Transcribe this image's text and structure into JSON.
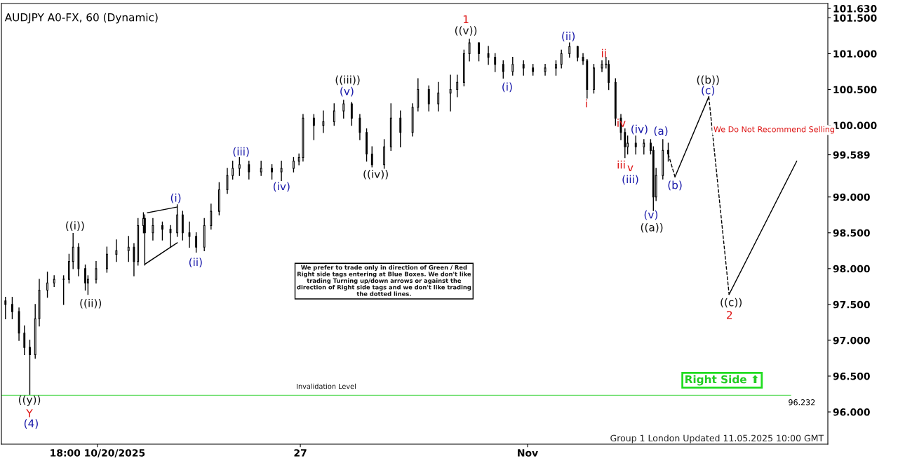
{
  "chart_data": {
    "type": "candlestick",
    "title": "AUDJPY A0-FX, 60 (Dynamic)",
    "x": [
      "2025-10-17T22:00",
      "2025-10-18T03:00",
      "2025-10-18T08:00",
      "2025-10-18T12:00",
      "2025-10-18T16:00",
      "2025-10-18T20:00",
      "2025-10-18T23:00",
      "2025-10-19T05:00",
      "2025-10-19T10:00",
      "2025-10-19T17:00",
      "2025-10-19T21:00",
      "2025-10-20T00:00",
      "2025-10-20T04:00",
      "2025-10-20T09:00",
      "2025-10-20T11:00",
      "2025-10-20T17:00",
      "2025-10-21T01:00",
      "2025-10-21T08:00",
      "2025-10-21T17:00",
      "2025-10-21T21:00",
      "2025-10-22T00:00",
      "2025-10-22T04:00",
      "2025-10-22T05:00",
      "2025-10-22T11:00",
      "2025-10-22T18:00",
      "2025-10-23T00:00",
      "2025-10-23T05:00",
      "2025-10-23T09:00",
      "2025-10-23T14:00",
      "2025-10-23T19:00",
      "2025-10-24T01:00",
      "2025-10-24T06:00",
      "2025-10-24T12:00",
      "2025-10-24T18:00",
      "2025-10-24T22:00",
      "2025-10-25T03:00",
      "2025-10-25T10:00",
      "2025-10-25T19:00",
      "2025-10-26T03:00",
      "2025-10-26T10:00",
      "2025-10-26T19:00",
      "2025-10-26T23:00",
      "2025-10-27T02:00",
      "2025-10-27T10:00",
      "2025-10-27T17:00",
      "2025-10-28T01:00",
      "2025-10-28T08:00",
      "2025-10-28T14:00",
      "2025-10-28T20:00",
      "2025-10-29T01:00",
      "2025-10-29T05:00",
      "2025-10-29T14:00",
      "2025-10-29T19:00",
      "2025-10-30T02:00",
      "2025-10-30T11:00",
      "2025-10-30T15:00",
      "2025-10-30T23:00",
      "2025-10-31T06:00",
      "2025-10-31T15:00",
      "2025-10-31T20:00",
      "2025-11-01T01:00",
      "2025-11-01T05:00",
      "2025-11-01T12:00",
      "2025-11-01T19:00",
      "2025-11-02T00:00",
      "2025-11-02T06:00",
      "2025-11-02T13:00",
      "2025-11-02T21:00",
      "2025-11-03T04:00",
      "2025-11-03T13:00",
      "2025-11-03T21:00",
      "2025-11-04T01:00",
      "2025-11-04T07:00",
      "2025-11-04T13:00",
      "2025-11-04T17:00",
      "2025-11-04T20:00",
      "2025-11-05T01:00",
      "2025-11-05T07:00",
      "2025-11-05T10:00",
      "2025-11-05T12:00",
      "2025-11-05T17:00",
      "2025-11-05T21:00",
      "2025-11-06T00:00",
      "2025-11-06T02:00",
      "2025-11-06T08:00",
      "2025-11-06T14:00",
      "2025-11-06T19:00",
      "2025-11-06T21:00",
      "2025-11-06T23:00",
      "2025-11-07T04:00",
      "2025-11-07T08:00"
    ],
    "ohlc": [
      [
        97.55,
        97.6,
        97.3,
        97.5
      ],
      [
        97.5,
        97.6,
        97.3,
        97.4
      ],
      [
        97.4,
        97.45,
        97.0,
        97.1
      ],
      [
        97.1,
        97.2,
        96.8,
        96.9
      ],
      [
        96.9,
        97.0,
        96.232,
        96.8
      ],
      [
        96.8,
        97.5,
        96.75,
        97.3
      ],
      [
        97.3,
        97.85,
        97.2,
        97.7
      ],
      [
        97.7,
        97.95,
        97.6,
        97.8
      ],
      [
        97.8,
        97.9,
        97.75,
        97.85
      ],
      [
        97.85,
        97.9,
        97.5,
        97.85
      ],
      [
        97.85,
        98.2,
        97.8,
        98.1
      ],
      [
        98.1,
        98.49,
        98.0,
        98.3
      ],
      [
        98.3,
        98.35,
        97.9,
        98.0
      ],
      [
        98.0,
        98.05,
        97.7,
        97.8
      ],
      [
        97.8,
        97.9,
        97.64,
        97.85
      ],
      [
        97.85,
        98.1,
        97.8,
        98.0
      ],
      [
        98.0,
        98.3,
        97.95,
        98.2
      ],
      [
        98.2,
        98.4,
        98.1,
        98.25
      ],
      [
        98.25,
        98.45,
        98.1,
        98.3
      ],
      [
        98.3,
        98.35,
        97.9,
        98.1
      ],
      [
        98.1,
        98.7,
        98.05,
        98.6
      ],
      [
        98.6,
        98.78,
        98.5,
        98.7
      ],
      [
        98.7,
        98.75,
        98.05,
        98.5
      ],
      [
        98.5,
        98.7,
        98.4,
        98.6
      ],
      [
        98.6,
        98.65,
        98.4,
        98.55
      ],
      [
        98.55,
        98.6,
        98.3,
        98.5
      ],
      [
        98.5,
        98.89,
        98.45,
        98.75
      ],
      [
        98.75,
        98.8,
        98.4,
        98.5
      ],
      [
        98.5,
        98.65,
        98.3,
        98.45
      ],
      [
        98.45,
        98.5,
        98.23,
        98.3
      ],
      [
        98.3,
        98.7,
        98.25,
        98.6
      ],
      [
        98.6,
        98.9,
        98.55,
        98.8
      ],
      [
        98.8,
        99.2,
        98.75,
        99.1
      ],
      [
        99.1,
        99.4,
        99.05,
        99.3
      ],
      [
        99.3,
        99.5,
        99.25,
        99.4
      ],
      [
        99.4,
        99.55,
        99.3,
        99.45
      ],
      [
        99.45,
        99.5,
        99.25,
        99.35
      ],
      [
        99.35,
        99.5,
        99.3,
        99.4
      ],
      [
        99.4,
        99.45,
        99.25,
        99.35
      ],
      [
        99.35,
        99.5,
        99.23,
        99.4
      ],
      [
        99.4,
        99.55,
        99.35,
        99.5
      ],
      [
        99.5,
        99.6,
        99.45,
        99.55
      ],
      [
        99.55,
        100.15,
        99.5,
        100.1
      ],
      [
        100.1,
        100.15,
        99.8,
        100.0
      ],
      [
        100.0,
        100.2,
        99.9,
        100.05
      ],
      [
        100.05,
        100.3,
        100.0,
        100.2
      ],
      [
        100.2,
        100.35,
        100.1,
        100.3
      ],
      [
        100.3,
        100.32,
        100.0,
        100.1
      ],
      [
        100.1,
        100.15,
        99.8,
        99.9
      ],
      [
        99.9,
        99.95,
        99.5,
        99.6
      ],
      [
        99.6,
        99.7,
        99.42,
        99.45
      ],
      [
        99.45,
        99.8,
        99.4,
        99.7
      ],
      [
        99.7,
        100.3,
        99.65,
        100.1
      ],
      [
        100.1,
        100.2,
        99.7,
        99.9
      ],
      [
        99.9,
        100.3,
        99.85,
        100.25
      ],
      [
        100.25,
        100.65,
        100.2,
        100.5
      ],
      [
        100.5,
        100.55,
        100.2,
        100.3
      ],
      [
        100.3,
        100.6,
        100.2,
        100.45
      ],
      [
        100.45,
        100.7,
        100.2,
        100.5
      ],
      [
        100.5,
        100.7,
        100.4,
        100.6
      ],
      [
        100.6,
        101.05,
        100.55,
        101.0
      ],
      [
        101.0,
        101.2,
        100.9,
        101.15
      ],
      [
        101.15,
        101.15,
        100.9,
        101.0
      ],
      [
        101.0,
        101.1,
        100.85,
        100.95
      ],
      [
        100.95,
        101.0,
        100.75,
        100.85
      ],
      [
        100.85,
        100.9,
        100.66,
        100.75
      ],
      [
        100.75,
        100.95,
        100.7,
        100.85
      ],
      [
        100.85,
        100.9,
        100.7,
        100.8
      ],
      [
        100.8,
        100.85,
        100.7,
        100.75
      ],
      [
        100.75,
        100.85,
        100.7,
        100.8
      ],
      [
        100.8,
        100.9,
        100.7,
        100.85
      ],
      [
        100.85,
        101.05,
        100.8,
        101.0
      ],
      [
        101.0,
        101.15,
        100.95,
        101.1
      ],
      [
        101.1,
        101.1,
        100.9,
        100.95
      ],
      [
        100.95,
        101.0,
        100.85,
        100.9
      ],
      [
        100.9,
        100.92,
        100.38,
        100.5
      ],
      [
        100.5,
        100.85,
        100.45,
        100.8
      ],
      [
        100.8,
        100.9,
        100.75,
        100.85
      ],
      [
        100.85,
        100.95,
        100.8,
        100.85
      ],
      [
        100.85,
        100.9,
        100.5,
        100.6
      ],
      [
        100.6,
        100.65,
        100.0,
        100.1
      ],
      [
        100.1,
        100.15,
        99.8,
        99.9
      ],
      [
        99.9,
        99.95,
        99.55,
        99.7
      ],
      [
        99.7,
        99.85,
        99.6,
        99.75
      ],
      [
        99.75,
        99.85,
        99.6,
        99.7
      ],
      [
        99.7,
        99.8,
        99.6,
        99.75
      ],
      [
        99.75,
        99.8,
        99.6,
        99.65
      ],
      [
        99.65,
        99.7,
        98.81,
        99.0
      ],
      [
        99.0,
        99.4,
        98.95,
        99.3
      ],
      [
        99.3,
        99.8,
        99.25,
        99.65
      ],
      [
        99.65,
        99.75,
        99.5,
        99.6
      ]
    ],
    "color": "#000000",
    "series": [
      {
        "type": "line",
        "color": "#000000",
        "line_style": "dashed",
        "x": [
          "2025-11-07T08:00",
          "2025-11-07T13:00"
        ],
        "values": [
          99.6,
          99.28
        ]
      },
      {
        "type": "line",
        "color": "#000000",
        "line_style": "solid",
        "x": [
          "2025-11-07T13:00",
          "2025-11-08T14:00"
        ],
        "values": [
          99.28,
          100.4
        ]
      },
      {
        "type": "line",
        "color": "#000000",
        "line_style": "dashed",
        "x": [
          "2025-11-08T14:00",
          "2025-11-09T05:00"
        ],
        "values": [
          100.4,
          97.64
        ]
      },
      {
        "type": "line",
        "color": "#000000",
        "line_style": "solid",
        "x": [
          "2025-11-09T05:00",
          "2025-11-11T07:00"
        ],
        "values": [
          97.64,
          99.5
        ]
      },
      {
        "type": "line",
        "color": "#000000",
        "line_style": "solid",
        "x": [
          "2025-10-22T07:00",
          "2025-10-23T05:00"
        ],
        "values": [
          98.78,
          98.86
        ]
      },
      {
        "type": "line",
        "color": "#000000",
        "line_style": "solid",
        "x": [
          "2025-10-22T05:00",
          "2025-10-23T05:00"
        ],
        "values": [
          98.06,
          98.36
        ]
      }
    ],
    "ref_lines": [
      {
        "axis": "y",
        "value": 96.232,
        "label": "96.232",
        "color": "#66dd66"
      }
    ],
    "xlim": [
      "2025-10-17T19:00",
      "2025-11-12T06:00"
    ],
    "xticks": [
      {
        "value": "2025-10-20T18:00",
        "label": "18:00 10/20/2025"
      },
      {
        "value": "2025-10-27",
        "label": "27"
      },
      {
        "value": "2025-11-03",
        "label": "Nov"
      }
    ],
    "ylim": [
      95.55,
      101.7
    ],
    "yticks": [
      {
        "value": 96,
        "label": "96.000"
      },
      {
        "value": 96.5,
        "label": "96.500"
      },
      {
        "value": 97,
        "label": "97.000"
      },
      {
        "value": 97.5,
        "label": "97.500"
      },
      {
        "value": 98,
        "label": "98.000"
      },
      {
        "value": 98.5,
        "label": "98.500"
      },
      {
        "value": 99,
        "label": "99.000"
      },
      99.589,
      {
        "value": 100,
        "label": "100.000"
      },
      {
        "value": 100.5,
        "label": "100.500"
      },
      {
        "value": 101,
        "label": "101.000"
      },
      {
        "value": 101.5,
        "label": "101.500"
      },
      {
        "value": 101.63,
        "label": "101.630"
      }
    ],
    "grid": false,
    "legend": false,
    "annotations": [
      "Invalidation Level",
      "We prefer to trade only in direction of Green / Red Right side tags entering at Blue Boxes. We don't like trading Turning up/down arrows or against the direction of Right side tags and we don't like trading the dotted lines.",
      "We Do Not Recommend Selling",
      "Right Side ⬆",
      "Group 1 London Updated 11.05.2025 10:00 GMT",
      "((y))",
      "Y",
      "(4)",
      "((i))",
      "((ii))",
      "(i)",
      "(ii)",
      "(iii)",
      "(iv)",
      "((iii))",
      "(v)",
      "((iv))",
      "1",
      "((v))",
      "(i)",
      "(ii)",
      "i",
      "ii",
      "iv",
      "(iv)",
      "iii",
      "v",
      "(iii)",
      "(a)",
      "(b)",
      "(v)",
      "((a))",
      "((b))",
      "(c)",
      "((c))",
      "2"
    ]
  }
}
